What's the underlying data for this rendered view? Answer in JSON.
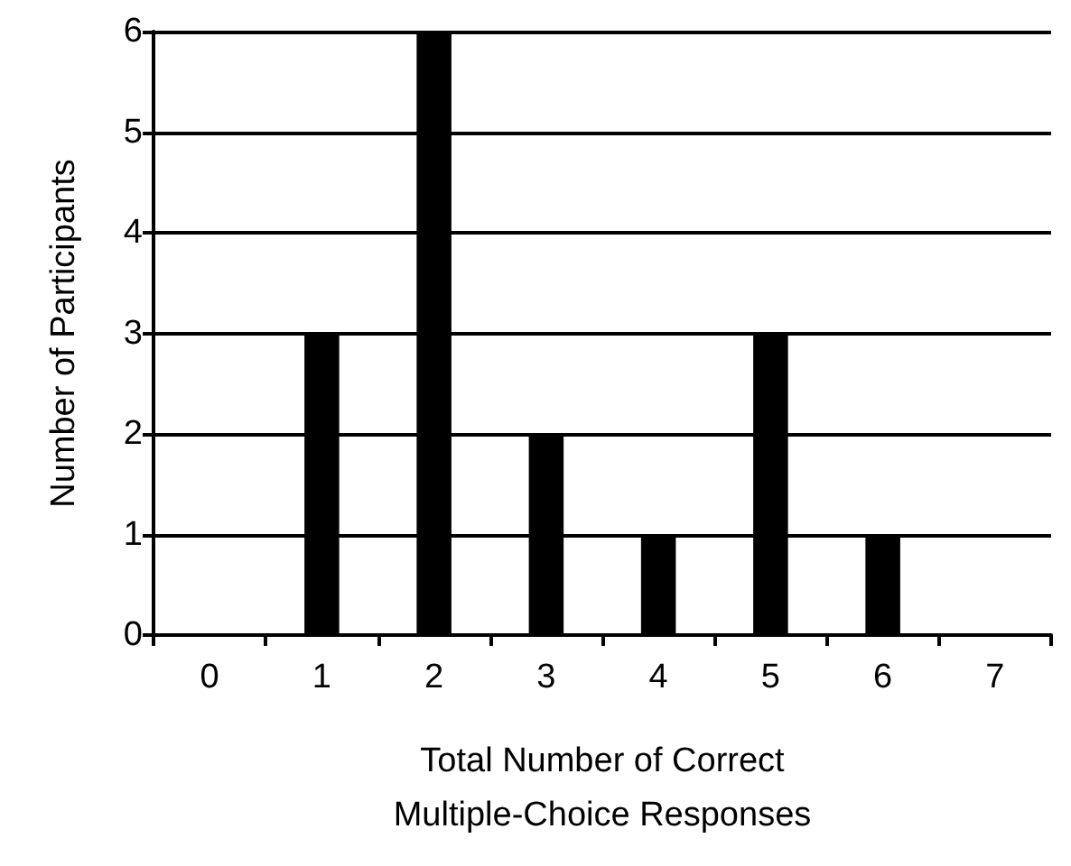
{
  "chart_data": {
    "type": "bar",
    "xlabel": "Total Number of Correct\nMultiple-Choice Responses",
    "ylabel": "Number of Participants",
    "categories": [
      "0",
      "1",
      "2",
      "3",
      "4",
      "5",
      "6",
      "7"
    ],
    "values": [
      0,
      3,
      6,
      2,
      1,
      3,
      1,
      0
    ],
    "color": "#000000",
    "ylim": [
      0,
      6
    ],
    "yticks": [
      0,
      1,
      2,
      3,
      4,
      5,
      6
    ],
    "grid": "y"
  }
}
